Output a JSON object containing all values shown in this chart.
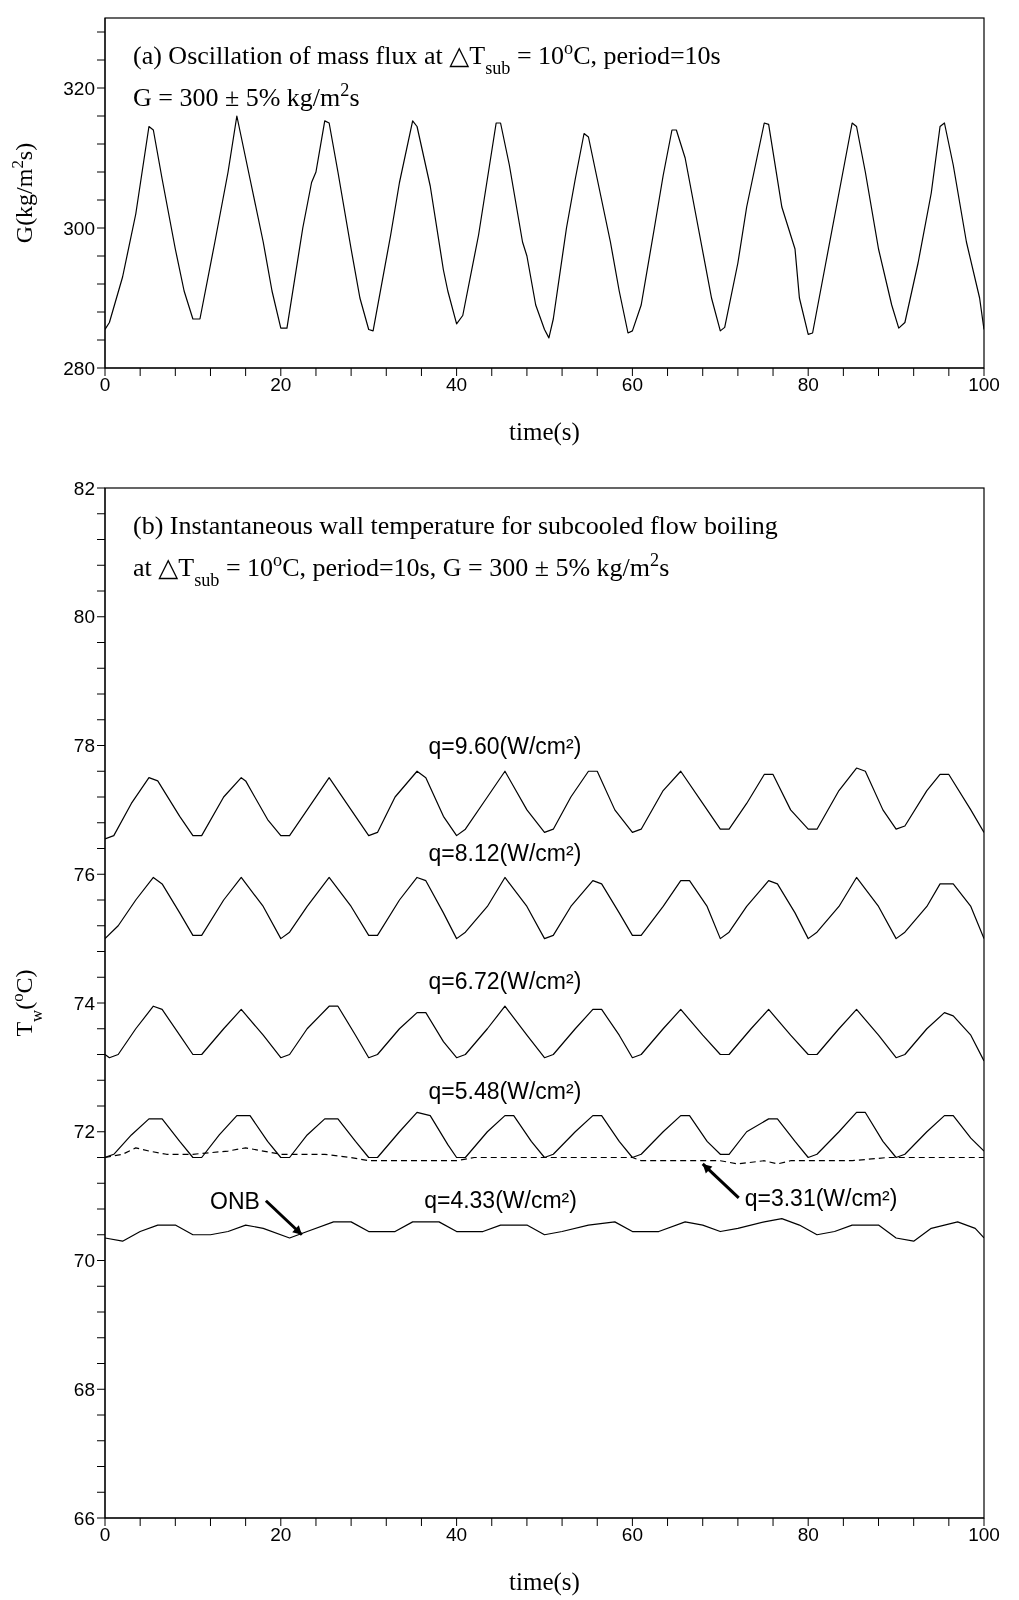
{
  "chart_data": [
    {
      "type": "line",
      "title": "(a) Oscillation of mass flux at △T$_{sub}$ = 10$^{o}$C, period=10s",
      "subtitle": "G = 300 ± 5% kg/m$^{2}$s",
      "xlabel": "time(s)",
      "ylabel": "G(kg/m$^{2}$s)",
      "xlim": [
        0,
        100
      ],
      "xticks": [
        0,
        {
          "value": 4,
          "label": null
        },
        {
          "value": 8,
          "label": null
        },
        {
          "value": 12,
          "label": null
        },
        {
          "value": 16,
          "label": null
        },
        20,
        {
          "value": 24,
          "label": null
        },
        {
          "value": 28,
          "label": null
        },
        {
          "value": 32,
          "label": null
        },
        {
          "value": 36,
          "label": null
        },
        40,
        {
          "value": 44,
          "label": null
        },
        {
          "value": 48,
          "label": null
        },
        {
          "value": 52,
          "label": null
        },
        {
          "value": 56,
          "label": null
        },
        60,
        {
          "value": 64,
          "label": null
        },
        {
          "value": 68,
          "label": null
        },
        {
          "value": 72,
          "label": null
        },
        {
          "value": 76,
          "label": null
        },
        80,
        {
          "value": 84,
          "label": null
        },
        {
          "value": 88,
          "label": null
        },
        {
          "value": 92,
          "label": null
        },
        {
          "value": 96,
          "label": null
        },
        100
      ],
      "ylim": [
        280,
        330
      ],
      "yticks": [
        280,
        {
          "value": 284,
          "label": null
        },
        {
          "value": 288,
          "label": null
        },
        {
          "value": 292,
          "label": null
        },
        {
          "value": 296,
          "label": null
        },
        300,
        {
          "value": 304,
          "label": null
        },
        {
          "value": 308,
          "label": null
        },
        {
          "value": 312,
          "label": null
        },
        {
          "value": 316,
          "label": null
        },
        320,
        {
          "value": 324,
          "label": null
        },
        {
          "value": 328,
          "label": null
        }
      ],
      "line_style": "solid",
      "series": [
        {
          "color": "#000000",
          "x": [
            0,
            0.5,
            2,
            3.5,
            5,
            5.5,
            6.5,
            8,
            9,
            10,
            10.8,
            12.5,
            14,
            15,
            16.5,
            18,
            19,
            20,
            20.7,
            22.5,
            23.5,
            24,
            25,
            25.5,
            26.5,
            28,
            29,
            30,
            30.5,
            32.5,
            33.5,
            35,
            35.5,
            37,
            38.5,
            39,
            40,
            40.7,
            42.5,
            44.5,
            45,
            46,
            47.5,
            48,
            49,
            50,
            50.5,
            51,
            52.5,
            53.5,
            54.5,
            55,
            56,
            57.5,
            58.5,
            59.5,
            60,
            61,
            62.5,
            63.5,
            64.5,
            65,
            66,
            67.5,
            69,
            70,
            70.5,
            72,
            73,
            74,
            75,
            75.5,
            77,
            78.5,
            79,
            80,
            80.5,
            82,
            83.5,
            85,
            85.5,
            86.5,
            88,
            89.5,
            90.3,
            91,
            92.5,
            94,
            95,
            95.5,
            96.5,
            98,
            99.5,
            100
          ],
          "values": [
            285.5,
            286.5,
            293,
            302,
            314.5,
            314,
            307,
            297,
            291,
            287,
            287,
            298,
            308,
            316,
            307,
            298,
            291,
            285.7,
            285.7,
            300,
            306.5,
            308,
            315.3,
            315,
            308,
            297,
            290,
            285.5,
            285.3,
            299,
            306.5,
            315.3,
            314.5,
            306,
            294,
            291,
            286.3,
            287.5,
            299,
            315,
            315,
            309,
            298,
            296,
            289,
            285.5,
            284.3,
            287,
            300,
            307,
            313.5,
            313,
            307,
            298,
            291,
            285,
            285.3,
            289,
            300,
            307.5,
            314,
            314,
            310,
            300,
            290,
            285.3,
            285.8,
            295,
            303,
            309,
            315,
            314.8,
            303,
            297,
            290,
            284.8,
            285,
            295,
            305,
            315,
            314.5,
            308,
            297,
            289,
            285.7,
            286.5,
            295,
            305,
            314.5,
            315,
            309,
            298,
            290,
            285.5
          ]
        }
      ]
    },
    {
      "type": "line",
      "title": "(b) Instantaneous wall temperature for subcooled flow boiling",
      "subtitle": "at △T$_{sub}$ = 10$^{o}$C, period=10s, G = 300 ± 5% kg/m$^{2}$s",
      "xlabel": "time(s)",
      "ylabel": "T$_{w}$($^{o}$C)",
      "xlim": [
        0,
        100
      ],
      "xticks": [
        0,
        {
          "value": 4,
          "label": null
        },
        {
          "value": 8,
          "label": null
        },
        {
          "value": 12,
          "label": null
        },
        {
          "value": 16,
          "label": null
        },
        20,
        {
          "value": 24,
          "label": null
        },
        {
          "value": 28,
          "label": null
        },
        {
          "value": 32,
          "label": null
        },
        {
          "value": 36,
          "label": null
        },
        40,
        {
          "value": 44,
          "label": null
        },
        {
          "value": 48,
          "label": null
        },
        {
          "value": 52,
          "label": null
        },
        {
          "value": 56,
          "label": null
        },
        60,
        {
          "value": 64,
          "label": null
        },
        {
          "value": 68,
          "label": null
        },
        {
          "value": 72,
          "label": null
        },
        {
          "value": 76,
          "label": null
        },
        80,
        {
          "value": 84,
          "label": null
        },
        {
          "value": 88,
          "label": null
        },
        {
          "value": 92,
          "label": null
        },
        {
          "value": 96,
          "label": null
        },
        100
      ],
      "ylim": [
        66,
        82
      ],
      "yticks": [
        66,
        {
          "value": 66.4,
          "label": null
        },
        {
          "value": 66.8,
          "label": null
        },
        {
          "value": 67.2,
          "label": null
        },
        {
          "value": 67.6,
          "label": null
        },
        68,
        {
          "value": 68.4,
          "label": null
        },
        {
          "value": 68.8,
          "label": null
        },
        {
          "value": 69.2,
          "label": null
        },
        {
          "value": 69.6,
          "label": null
        },
        70,
        {
          "value": 70.4,
          "label": null
        },
        {
          "value": 70.8,
          "label": null
        },
        {
          "value": 71.2,
          "label": null
        },
        {
          "value": 71.6,
          "label": null
        },
        72,
        {
          "value": 72.4,
          "label": null
        },
        {
          "value": 72.8,
          "label": null
        },
        {
          "value": 73.2,
          "label": null
        },
        {
          "value": 73.6,
          "label": null
        },
        74,
        {
          "value": 74.4,
          "label": null
        },
        {
          "value": 74.8,
          "label": null
        },
        {
          "value": 75.2,
          "label": null
        },
        {
          "value": 75.6,
          "label": null
        },
        76,
        {
          "value": 76.4,
          "label": null
        },
        {
          "value": 76.8,
          "label": null
        },
        {
          "value": 77.2,
          "label": null
        },
        {
          "value": 77.6,
          "label": null
        },
        78,
        {
          "value": 78.4,
          "label": null
        },
        {
          "value": 78.8,
          "label": null
        },
        {
          "value": 79.2,
          "label": null
        },
        {
          "value": 79.6,
          "label": null
        },
        80,
        {
          "value": 80.4,
          "label": null
        },
        {
          "value": 80.8,
          "label": null
        },
        {
          "value": 81.2,
          "label": null
        },
        {
          "value": 81.6,
          "label": null
        },
        82
      ],
      "line_style": "solid",
      "annotations": [
        {
          "text": "q=9.60(W/cm²)",
          "x": 45.5,
          "y": 77.6
        },
        {
          "text": "q=8.12(W/cm²)",
          "x": 45.5,
          "y": 75.95
        },
        {
          "text": "q=6.72(W/cm²)",
          "x": 45.5,
          "y": 73.95
        },
        {
          "text": "q=5.48(W/cm²)",
          "x": 45.5,
          "y": 72.25
        },
        {
          "text": "q=4.33(W/cm²)",
          "x": 45,
          "y": 70.55
        },
        {
          "text": "q=3.31(W/cm²)",
          "x": 68,
          "y": 71.5
        },
        {
          "text": "ONB",
          "x": 22.4,
          "y": 70.4
        }
      ],
      "series": [
        {
          "color": "#000000",
          "x": [
            0,
            1,
            3,
            5,
            6,
            8.5,
            10,
            11,
            13.5,
            15.5,
            16,
            18.5,
            20,
            21,
            23,
            25.5,
            28,
            30,
            31,
            33,
            35.5,
            36.5,
            38.5,
            40,
            41,
            43.5,
            45.5,
            48,
            50,
            51,
            53,
            55,
            56,
            58,
            60,
            61,
            63.5,
            65.5,
            68,
            70,
            71,
            73,
            75,
            76,
            78,
            80,
            81,
            83.5,
            85.5,
            86.5,
            88.5,
            90,
            91,
            93.5,
            95,
            96,
            98.5,
            100
          ],
          "values": [
            76.55,
            76.6,
            77.1,
            77.5,
            77.45,
            76.9,
            76.6,
            76.6,
            77.2,
            77.5,
            77.45,
            76.85,
            76.6,
            76.6,
            77.0,
            77.5,
            77.0,
            76.6,
            76.65,
            77.2,
            77.6,
            77.5,
            76.9,
            76.6,
            76.7,
            77.2,
            77.6,
            77.0,
            76.65,
            76.7,
            77.2,
            77.6,
            77.6,
            77.0,
            76.65,
            76.7,
            77.3,
            77.6,
            77.1,
            76.7,
            76.7,
            77.1,
            77.55,
            77.55,
            77.0,
            76.7,
            76.7,
            77.3,
            77.65,
            77.6,
            77.0,
            76.7,
            76.75,
            77.3,
            77.55,
            77.55,
            77.0,
            76.65
          ]
        },
        {
          "color": "#000000",
          "x": [
            0,
            1.5,
            3.5,
            5.5,
            6.5,
            8.5,
            10,
            11,
            13.5,
            15.5,
            18,
            20,
            21,
            23,
            25.5,
            28,
            30,
            31,
            33.5,
            35.5,
            36.5,
            38.5,
            40,
            41,
            43.5,
            45.5,
            48,
            50,
            51,
            53,
            55.5,
            56.5,
            58.5,
            60,
            61,
            63.5,
            65.5,
            66.5,
            68.5,
            70,
            71,
            73,
            75.5,
            76.5,
            78.5,
            80,
            81,
            83.5,
            85.5,
            88,
            90,
            91,
            93.5,
            95,
            96.5,
            98.5,
            100
          ],
          "values": [
            75.0,
            75.2,
            75.6,
            75.95,
            75.85,
            75.4,
            75.05,
            75.05,
            75.6,
            75.95,
            75.5,
            75.0,
            75.1,
            75.5,
            75.95,
            75.5,
            75.05,
            75.05,
            75.6,
            75.95,
            75.9,
            75.4,
            75.0,
            75.1,
            75.5,
            75.95,
            75.5,
            75.0,
            75.05,
            75.5,
            75.9,
            75.85,
            75.4,
            75.05,
            75.05,
            75.5,
            75.9,
            75.9,
            75.5,
            75.0,
            75.1,
            75.5,
            75.9,
            75.85,
            75.4,
            75.0,
            75.1,
            75.5,
            75.95,
            75.5,
            75.0,
            75.1,
            75.5,
            75.85,
            75.85,
            75.5,
            75.0
          ]
        },
        {
          "color": "#000000",
          "x": [
            0,
            0.5,
            1.5,
            3.5,
            5.5,
            6.5,
            8.5,
            10,
            11,
            13.5,
            15.5,
            18,
            20,
            21,
            23,
            25.5,
            26.5,
            28.5,
            30,
            31,
            33.5,
            35.5,
            36.5,
            38.5,
            40,
            41,
            43.5,
            45.5,
            48,
            50,
            51,
            53.5,
            55.5,
            56.5,
            58.5,
            60,
            61,
            63.5,
            65.5,
            68,
            70,
            71,
            73.5,
            75.5,
            78,
            80,
            81,
            83.5,
            85.5,
            88,
            90,
            91,
            93.5,
            95.5,
            96.5,
            98.5,
            100
          ],
          "values": [
            73.2,
            73.15,
            73.2,
            73.6,
            73.95,
            73.9,
            73.5,
            73.2,
            73.2,
            73.6,
            73.9,
            73.5,
            73.15,
            73.2,
            73.6,
            73.95,
            73.95,
            73.5,
            73.15,
            73.2,
            73.6,
            73.85,
            73.85,
            73.4,
            73.15,
            73.2,
            73.6,
            73.95,
            73.5,
            73.15,
            73.2,
            73.6,
            73.9,
            73.9,
            73.5,
            73.15,
            73.2,
            73.6,
            73.9,
            73.5,
            73.2,
            73.2,
            73.6,
            73.9,
            73.5,
            73.2,
            73.2,
            73.6,
            73.9,
            73.5,
            73.15,
            73.2,
            73.6,
            73.85,
            73.8,
            73.5,
            73.1
          ]
        },
        {
          "color": "#000000",
          "x": [
            0,
            1,
            3,
            5,
            6.5,
            8.5,
            10,
            11,
            13,
            15,
            16.5,
            18.5,
            20,
            21,
            23,
            25,
            26.5,
            28.5,
            30,
            31,
            33.5,
            35.5,
            37,
            39,
            40,
            41,
            43.5,
            45.5,
            46.5,
            48.5,
            50,
            51,
            53.5,
            55.5,
            56.5,
            58.5,
            60,
            61,
            63.5,
            65.5,
            66.5,
            68.5,
            70,
            71,
            73,
            75.5,
            76.5,
            78.5,
            80,
            81,
            83.5,
            85.5,
            86.5,
            88.5,
            90,
            91,
            93.5,
            95.5,
            96.5,
            98.5,
            100
          ],
          "values": [
            71.6,
            71.65,
            71.95,
            72.2,
            72.2,
            71.85,
            71.6,
            71.6,
            71.95,
            72.25,
            72.25,
            71.85,
            71.6,
            71.6,
            71.95,
            72.2,
            72.2,
            71.85,
            71.6,
            71.6,
            72.0,
            72.3,
            72.25,
            71.8,
            71.6,
            71.6,
            72.0,
            72.25,
            72.25,
            71.85,
            71.6,
            71.65,
            72.0,
            72.25,
            72.25,
            71.85,
            71.6,
            71.65,
            72.0,
            72.25,
            72.25,
            71.85,
            71.65,
            71.65,
            72.0,
            72.2,
            72.2,
            71.85,
            71.6,
            71.65,
            72.0,
            72.3,
            72.3,
            71.85,
            71.6,
            71.65,
            72.0,
            72.25,
            72.25,
            71.9,
            71.7
          ]
        },
        {
          "color": "#000000",
          "line_style": "dashed",
          "x": [
            0,
            2,
            3.5,
            5,
            7,
            10,
            14,
            16,
            18,
            20,
            25,
            28,
            30,
            40,
            42,
            60,
            61,
            70,
            72,
            75,
            76.5,
            78,
            85,
            89,
            92,
            95,
            100
          ],
          "values": [
            71.6,
            71.65,
            71.75,
            71.7,
            71.65,
            71.65,
            71.7,
            71.75,
            71.7,
            71.65,
            71.65,
            71.6,
            71.55,
            71.55,
            71.6,
            71.6,
            71.55,
            71.55,
            71.5,
            71.55,
            71.5,
            71.55,
            71.55,
            71.6,
            71.6,
            71.6,
            71.6
          ]
        },
        {
          "color": "#000000",
          "x": [
            0,
            2,
            4,
            6,
            8,
            10,
            12,
            14,
            16,
            18,
            21,
            23,
            26,
            28,
            30,
            33,
            35,
            38,
            40,
            43,
            45,
            48,
            50,
            52,
            55,
            58,
            60,
            63,
            66,
            68,
            70,
            72,
            75,
            77,
            79,
            81,
            83,
            85,
            88,
            90,
            92,
            94,
            97,
            99,
            100
          ],
          "values": [
            70.35,
            70.3,
            70.45,
            70.55,
            70.55,
            70.4,
            70.4,
            70.45,
            70.55,
            70.5,
            70.35,
            70.45,
            70.6,
            70.6,
            70.45,
            70.45,
            70.6,
            70.6,
            70.45,
            70.45,
            70.55,
            70.55,
            70.4,
            70.45,
            70.55,
            70.6,
            70.45,
            70.45,
            70.6,
            70.55,
            70.45,
            70.5,
            70.6,
            70.65,
            70.55,
            70.4,
            70.45,
            70.55,
            70.55,
            70.35,
            70.3,
            70.5,
            70.6,
            70.5,
            70.35
          ]
        }
      ]
    }
  ]
}
